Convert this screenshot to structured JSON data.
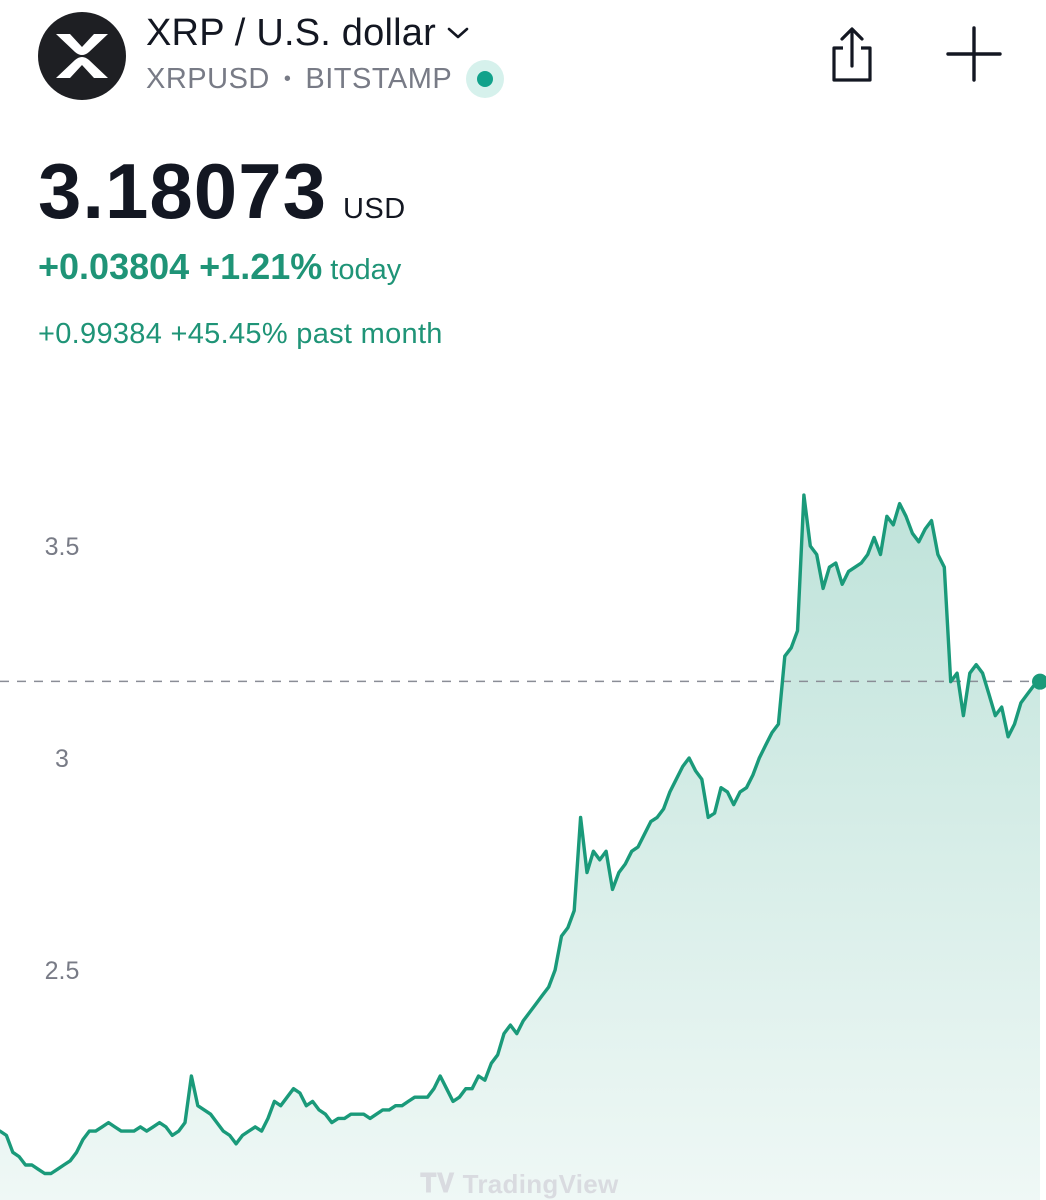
{
  "header": {
    "logo_icon": "xrp-logo-icon",
    "title": "XRP / U.S. dollar",
    "symbol": "XRPUSD",
    "separator": "•",
    "exchange": "BITSTAMP",
    "status_color": "#11a28b"
  },
  "quote": {
    "price": "3.18073",
    "currency": "USD",
    "change_today": "+0.03804 +1.21%",
    "change_today_label": "today",
    "change_month": "+0.99384 +45.45% past month",
    "accent_color": "#1f9477"
  },
  "chart_data": {
    "type": "area",
    "title": "",
    "xlabel": "",
    "ylabel": "",
    "ylim": [
      2.0,
      3.95
    ],
    "yticks": [
      "3.5",
      "3",
      "2.5"
    ],
    "ytick_values": [
      3.5,
      3.0,
      2.5
    ],
    "current_value": 3.18073,
    "line_color": "#1a9a7a",
    "series": [
      {
        "values": [
          2.12,
          2.11,
          2.07,
          2.06,
          2.04,
          2.04,
          2.03,
          2.02,
          2.02,
          2.03,
          2.04,
          2.05,
          2.07,
          2.1,
          2.12,
          2.12,
          2.13,
          2.14,
          2.13,
          2.12,
          2.12,
          2.12,
          2.13,
          2.12,
          2.13,
          2.14,
          2.13,
          2.11,
          2.12,
          2.14,
          2.25,
          2.18,
          2.17,
          2.16,
          2.14,
          2.12,
          2.11,
          2.09,
          2.11,
          2.12,
          2.13,
          2.12,
          2.15,
          2.19,
          2.18,
          2.2,
          2.22,
          2.21,
          2.18,
          2.19,
          2.17,
          2.16,
          2.14,
          2.15,
          2.15,
          2.16,
          2.16,
          2.16,
          2.15,
          2.16,
          2.17,
          2.17,
          2.18,
          2.18,
          2.19,
          2.2,
          2.2,
          2.2,
          2.22,
          2.25,
          2.22,
          2.19,
          2.2,
          2.22,
          2.22,
          2.25,
          2.24,
          2.28,
          2.3,
          2.35,
          2.37,
          2.35,
          2.38,
          2.4,
          2.42,
          2.44,
          2.46,
          2.5,
          2.58,
          2.6,
          2.64,
          2.86,
          2.73,
          2.78,
          2.76,
          2.78,
          2.69,
          2.73,
          2.75,
          2.78,
          2.79,
          2.82,
          2.85,
          2.86,
          2.88,
          2.92,
          2.95,
          2.98,
          3.0,
          2.97,
          2.95,
          2.86,
          2.87,
          2.93,
          2.92,
          2.89,
          2.92,
          2.93,
          2.96,
          3.0,
          3.03,
          3.06,
          3.08,
          3.24,
          3.26,
          3.3,
          3.62,
          3.5,
          3.48,
          3.4,
          3.45,
          3.46,
          3.41,
          3.44,
          3.45,
          3.46,
          3.48,
          3.52,
          3.48,
          3.57,
          3.55,
          3.6,
          3.57,
          3.53,
          3.51,
          3.54,
          3.56,
          3.48,
          3.45,
          3.18,
          3.2,
          3.1,
          3.2,
          3.22,
          3.2,
          3.15,
          3.1,
          3.12,
          3.05,
          3.08,
          3.13,
          3.15,
          3.17,
          3.18
        ]
      }
    ]
  },
  "branding": {
    "watermark": "TradingView"
  }
}
